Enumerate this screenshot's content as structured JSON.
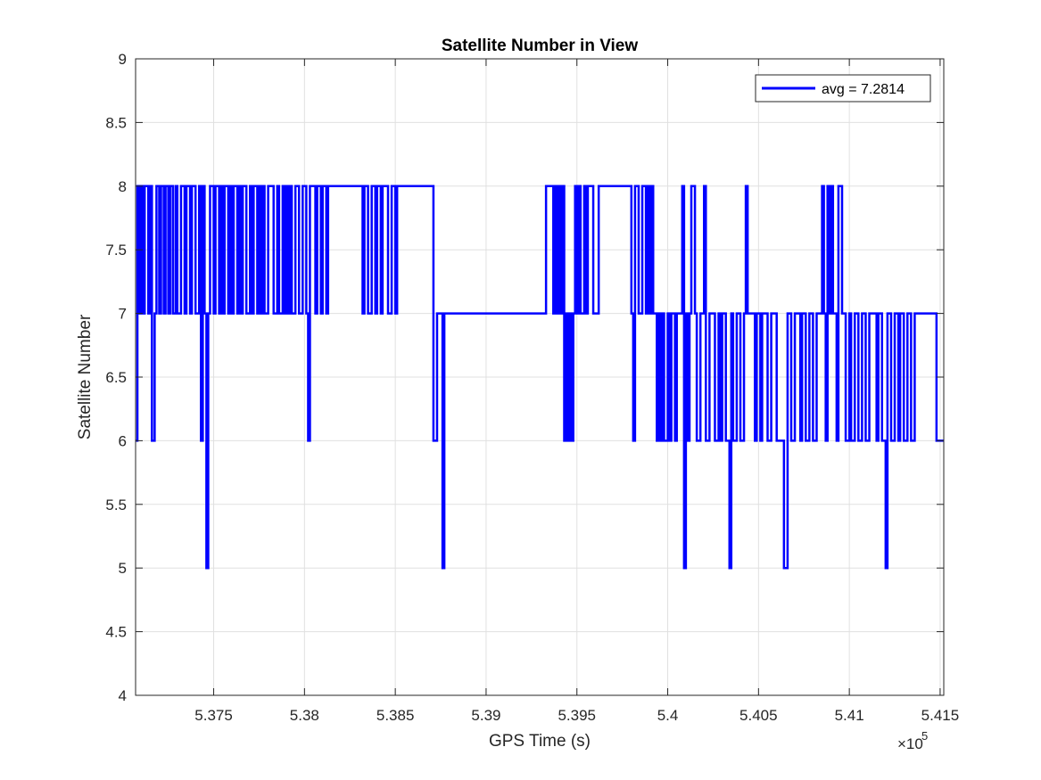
{
  "chart_data": {
    "type": "line",
    "title": "Satellite Number in View",
    "xlabel": "GPS Time (s)",
    "ylabel": "Satellite Number",
    "xlim": [
      537070,
      541520
    ],
    "ylim": [
      4,
      9
    ],
    "x_scale_exponent": "5",
    "x_tick_values": [
      537500,
      538000,
      538500,
      539000,
      539500,
      540000,
      540500,
      541000,
      541500
    ],
    "x_tick_labels": [
      "5.375",
      "5.38",
      "5.385",
      "5.39",
      "5.395",
      "5.4",
      "5.405",
      "5.41",
      "5.415"
    ],
    "y_tick_values": [
      4,
      4.5,
      5,
      5.5,
      6,
      6.5,
      7,
      7.5,
      8,
      8.5,
      9
    ],
    "y_tick_labels": [
      "4",
      "4.5",
      "5",
      "5.5",
      "6",
      "6.5",
      "7",
      "7.5",
      "8",
      "8.5",
      "9"
    ],
    "grid": true,
    "legend_placement": "top-right",
    "series": [
      {
        "name": "avg = 7.2814",
        "color": "#0000ff",
        "points": [
          [
            537070,
            6
          ],
          [
            537080,
            8
          ],
          [
            537090,
            7
          ],
          [
            537100,
            8
          ],
          [
            537110,
            7
          ],
          [
            537120,
            8
          ],
          [
            537140,
            7
          ],
          [
            537150,
            8
          ],
          [
            537160,
            6
          ],
          [
            537175,
            7
          ],
          [
            537185,
            8
          ],
          [
            537200,
            7
          ],
          [
            537210,
            8
          ],
          [
            537225,
            7
          ],
          [
            537235,
            8
          ],
          [
            537250,
            7
          ],
          [
            537260,
            8
          ],
          [
            537275,
            7
          ],
          [
            537290,
            8
          ],
          [
            537300,
            7
          ],
          [
            537320,
            8
          ],
          [
            537340,
            7
          ],
          [
            537350,
            8
          ],
          [
            537370,
            7
          ],
          [
            537380,
            8
          ],
          [
            537400,
            7
          ],
          [
            537420,
            8
          ],
          [
            537430,
            6
          ],
          [
            537440,
            8
          ],
          [
            537450,
            7
          ],
          [
            537460,
            5
          ],
          [
            537470,
            7
          ],
          [
            537480,
            8
          ],
          [
            537500,
            7
          ],
          [
            537510,
            8
          ],
          [
            537530,
            7
          ],
          [
            537540,
            8
          ],
          [
            537550,
            7
          ],
          [
            537560,
            8
          ],
          [
            537580,
            7
          ],
          [
            537590,
            8
          ],
          [
            537600,
            7
          ],
          [
            537610,
            8
          ],
          [
            537630,
            7
          ],
          [
            537640,
            8
          ],
          [
            537650,
            7
          ],
          [
            537660,
            8
          ],
          [
            537680,
            7
          ],
          [
            537700,
            8
          ],
          [
            537710,
            7
          ],
          [
            537720,
            8
          ],
          [
            537740,
            7
          ],
          [
            537750,
            8
          ],
          [
            537760,
            7
          ],
          [
            537770,
            8
          ],
          [
            537780,
            7
          ],
          [
            537800,
            8
          ],
          [
            537830,
            7
          ],
          [
            537850,
            8
          ],
          [
            537860,
            7
          ],
          [
            537880,
            8
          ],
          [
            537890,
            7
          ],
          [
            537900,
            8
          ],
          [
            537910,
            7
          ],
          [
            537920,
            8
          ],
          [
            537930,
            7
          ],
          [
            537950,
            8
          ],
          [
            537970,
            7
          ],
          [
            537990,
            8
          ],
          [
            538010,
            7
          ],
          [
            538020,
            6
          ],
          [
            538030,
            8
          ],
          [
            538060,
            7
          ],
          [
            538070,
            8
          ],
          [
            538090,
            7
          ],
          [
            538100,
            8
          ],
          [
            538120,
            7
          ],
          [
            538130,
            8
          ],
          [
            538320,
            7
          ],
          [
            538330,
            8
          ],
          [
            538350,
            7
          ],
          [
            538370,
            8
          ],
          [
            538390,
            7
          ],
          [
            538400,
            8
          ],
          [
            538420,
            7
          ],
          [
            538430,
            8
          ],
          [
            538460,
            7
          ],
          [
            538480,
            8
          ],
          [
            538500,
            7
          ],
          [
            538510,
            8
          ],
          [
            538710,
            6
          ],
          [
            538730,
            7
          ],
          [
            538760,
            5
          ],
          [
            538770,
            7
          ],
          [
            539330,
            8
          ],
          [
            539370,
            7
          ],
          [
            539380,
            8
          ],
          [
            539390,
            7
          ],
          [
            539400,
            8
          ],
          [
            539410,
            7
          ],
          [
            539420,
            8
          ],
          [
            539430,
            6
          ],
          [
            539440,
            7
          ],
          [
            539450,
            6
          ],
          [
            539460,
            7
          ],
          [
            539470,
            6
          ],
          [
            539480,
            7
          ],
          [
            539490,
            8
          ],
          [
            539500,
            7
          ],
          [
            539510,
            8
          ],
          [
            539520,
            7
          ],
          [
            539540,
            8
          ],
          [
            539550,
            7
          ],
          [
            539560,
            8
          ],
          [
            539590,
            7
          ],
          [
            539620,
            8
          ],
          [
            539800,
            7
          ],
          [
            539810,
            6
          ],
          [
            539820,
            8
          ],
          [
            539840,
            7
          ],
          [
            539860,
            8
          ],
          [
            539880,
            7
          ],
          [
            539890,
            8
          ],
          [
            539900,
            7
          ],
          [
            539910,
            8
          ],
          [
            539920,
            7
          ],
          [
            539940,
            6
          ],
          [
            539950,
            7
          ],
          [
            539960,
            6
          ],
          [
            539970,
            7
          ],
          [
            539980,
            6
          ],
          [
            540000,
            7
          ],
          [
            540010,
            6
          ],
          [
            540020,
            7
          ],
          [
            540040,
            6
          ],
          [
            540050,
            7
          ],
          [
            540080,
            8
          ],
          [
            540090,
            5
          ],
          [
            540100,
            7
          ],
          [
            540110,
            6
          ],
          [
            540120,
            7
          ],
          [
            540130,
            8
          ],
          [
            540150,
            7
          ],
          [
            540160,
            6
          ],
          [
            540180,
            7
          ],
          [
            540200,
            8
          ],
          [
            540210,
            6
          ],
          [
            540230,
            7
          ],
          [
            540260,
            6
          ],
          [
            540280,
            7
          ],
          [
            540290,
            6
          ],
          [
            540300,
            7
          ],
          [
            540320,
            6
          ],
          [
            540340,
            5
          ],
          [
            540350,
            7
          ],
          [
            540360,
            6
          ],
          [
            540380,
            7
          ],
          [
            540400,
            6
          ],
          [
            540420,
            7
          ],
          [
            540430,
            8
          ],
          [
            540440,
            7
          ],
          [
            540480,
            6
          ],
          [
            540490,
            7
          ],
          [
            540510,
            6
          ],
          [
            540520,
            7
          ],
          [
            540550,
            6
          ],
          [
            540570,
            7
          ],
          [
            540600,
            6
          ],
          [
            540640,
            5
          ],
          [
            540660,
            7
          ],
          [
            540680,
            6
          ],
          [
            540700,
            7
          ],
          [
            540730,
            6
          ],
          [
            540740,
            7
          ],
          [
            540760,
            6
          ],
          [
            540780,
            7
          ],
          [
            540800,
            6
          ],
          [
            540820,
            7
          ],
          [
            540850,
            8
          ],
          [
            540860,
            7
          ],
          [
            540870,
            6
          ],
          [
            540880,
            8
          ],
          [
            540890,
            7
          ],
          [
            540900,
            8
          ],
          [
            540910,
            7
          ],
          [
            540930,
            6
          ],
          [
            540940,
            8
          ],
          [
            540960,
            7
          ],
          [
            540980,
            6
          ],
          [
            541000,
            7
          ],
          [
            541010,
            6
          ],
          [
            541030,
            7
          ],
          [
            541050,
            6
          ],
          [
            541070,
            7
          ],
          [
            541090,
            6
          ],
          [
            541110,
            7
          ],
          [
            541150,
            6
          ],
          [
            541160,
            7
          ],
          [
            541180,
            6
          ],
          [
            541200,
            5
          ],
          [
            541210,
            7
          ],
          [
            541230,
            6
          ],
          [
            541250,
            7
          ],
          [
            541270,
            6
          ],
          [
            541280,
            7
          ],
          [
            541300,
            6
          ],
          [
            541320,
            7
          ],
          [
            541340,
            6
          ],
          [
            541360,
            7
          ],
          [
            541400,
            7
          ],
          [
            541420,
            7
          ],
          [
            541470,
            7
          ],
          [
            541480,
            6
          ],
          [
            541500,
            6
          ],
          [
            541520,
            6
          ]
        ]
      }
    ]
  }
}
